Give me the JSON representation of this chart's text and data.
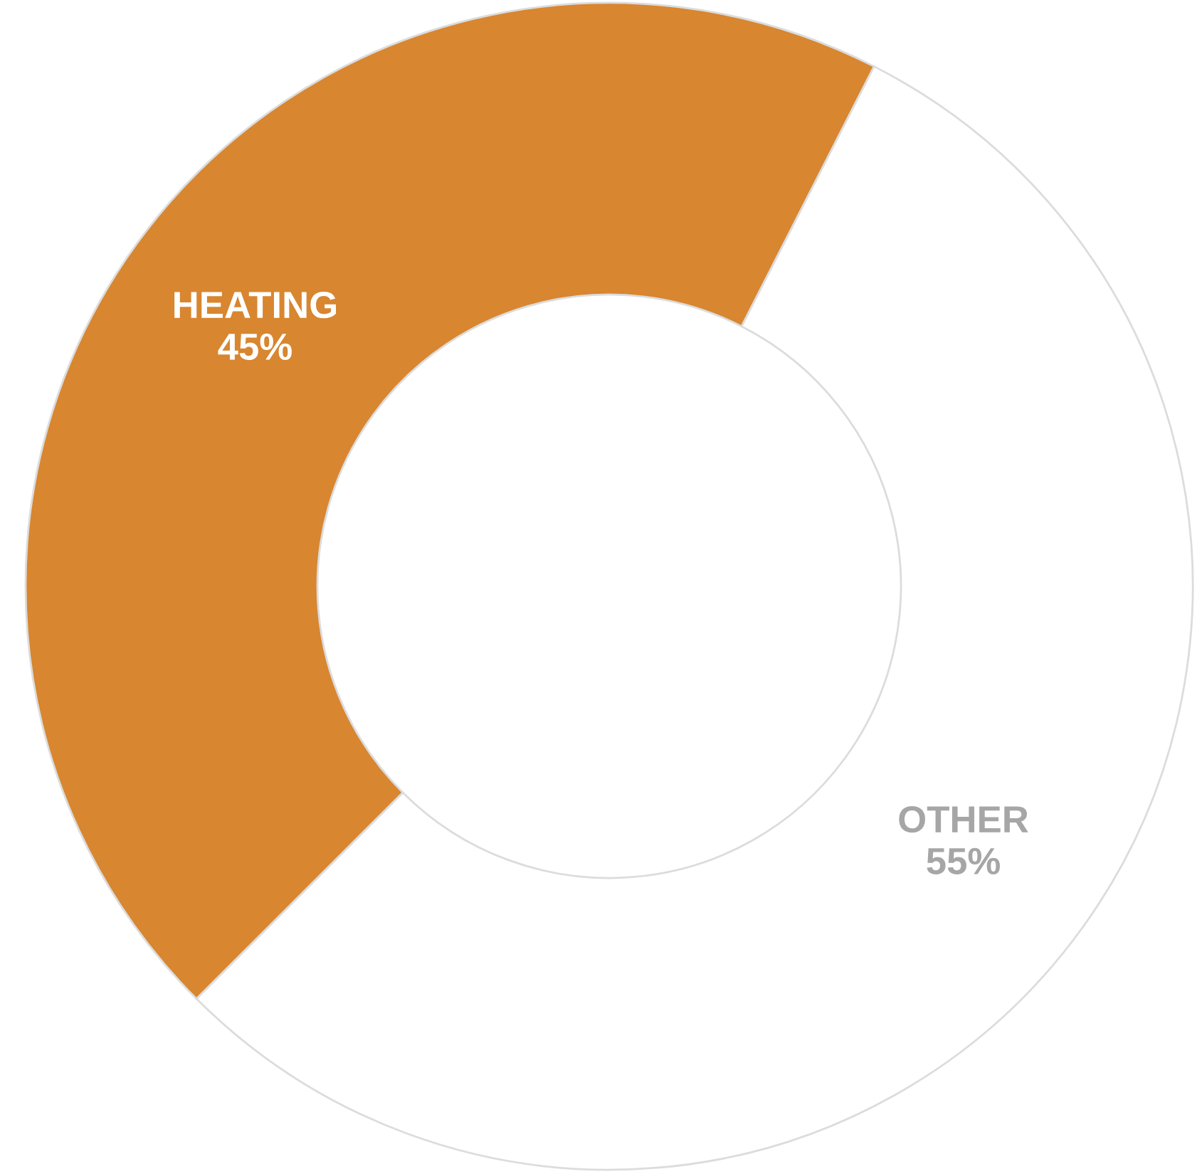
{
  "chart_data": {
    "type": "donut",
    "categories": [
      "HEATING",
      "OTHER"
    ],
    "values": [
      45,
      55
    ],
    "value_labels": [
      "45%",
      "55%"
    ],
    "colors": [
      "#d8862f",
      "#ffffff"
    ]
  }
}
